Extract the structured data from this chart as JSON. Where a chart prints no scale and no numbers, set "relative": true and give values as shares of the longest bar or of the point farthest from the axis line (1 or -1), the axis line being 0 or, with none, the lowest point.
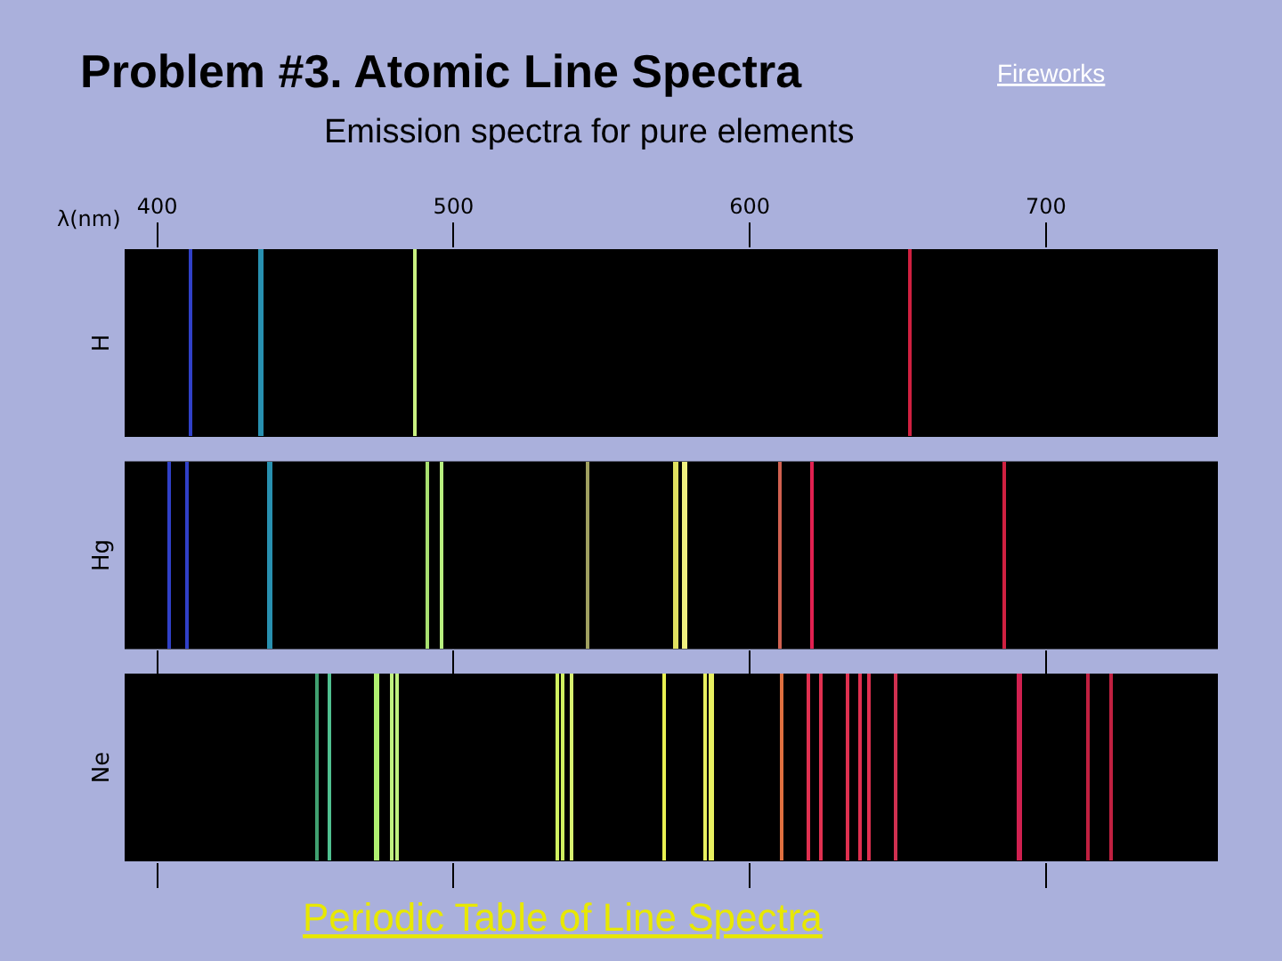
{
  "chart_data": [
    {
      "type": "bar",
      "title": "Problem #3. Atomic Line Spectra",
      "subtitle": "Emission spectra for pure elements",
      "xlabel": "λ(nm)",
      "ylabel": "H",
      "relative": true,
      "annotations": [
        "Fireworks",
        "Periodic Table of Line Spectra"
      ],
      "x": [
        411,
        435,
        487,
        654
      ],
      "values": [
        1,
        1,
        1,
        1
      ],
      "colors": [
        "#3040c8",
        "#2890b0",
        "#c8f080",
        "#d02040"
      ],
      "xlim": [
        389,
        758
      ],
      "xticks": [
        400,
        500,
        600,
        700
      ],
      "tick_labels": "x"
    },
    {
      "type": "bar",
      "ylabel": "Hg",
      "relative": true,
      "x": [
        404,
        410,
        438,
        491,
        496,
        545,
        575,
        578,
        610,
        621,
        686
      ],
      "values": [
        1,
        1,
        1,
        1,
        1,
        1,
        1,
        1,
        1,
        1,
        1
      ],
      "colors": [
        "#3040c8",
        "#3040c8",
        "#2890b0",
        "#a8e070",
        "#b8f080",
        "#a0a060",
        "#e0e060",
        "#f0f080",
        "#d06050",
        "#e02050",
        "#d02040"
      ],
      "xlim": [
        389,
        758
      ],
      "xticks": [
        400,
        500,
        600,
        700
      ],
      "tick_labels": false
    },
    {
      "type": "bar",
      "ylabel": "Ne",
      "relative": true,
      "x": [
        454,
        458,
        474,
        479,
        481,
        535,
        537,
        540,
        571,
        585,
        587,
        611,
        620,
        624,
        633,
        637,
        640,
        649,
        691,
        714,
        722
      ],
      "values": [
        1,
        1,
        1,
        1,
        1,
        1,
        1,
        1,
        1,
        1,
        1,
        1,
        1,
        1,
        1,
        1,
        1,
        1,
        1,
        1,
        1
      ],
      "colors": [
        "#40a070",
        "#50c090",
        "#b0f070",
        "#c0f080",
        "#c0f080",
        "#d0f060",
        "#d0f060",
        "#d8f070",
        "#e8f050",
        "#e8f060",
        "#e8f060",
        "#e07040",
        "#e03050",
        "#e03050",
        "#e03050",
        "#e03050",
        "#e03050",
        "#d03050",
        "#d02050",
        "#c02040",
        "#c02040"
      ],
      "xlim": [
        389,
        758
      ],
      "xticks": [
        400,
        500,
        600,
        700
      ],
      "tick_labels": false
    }
  ]
}
